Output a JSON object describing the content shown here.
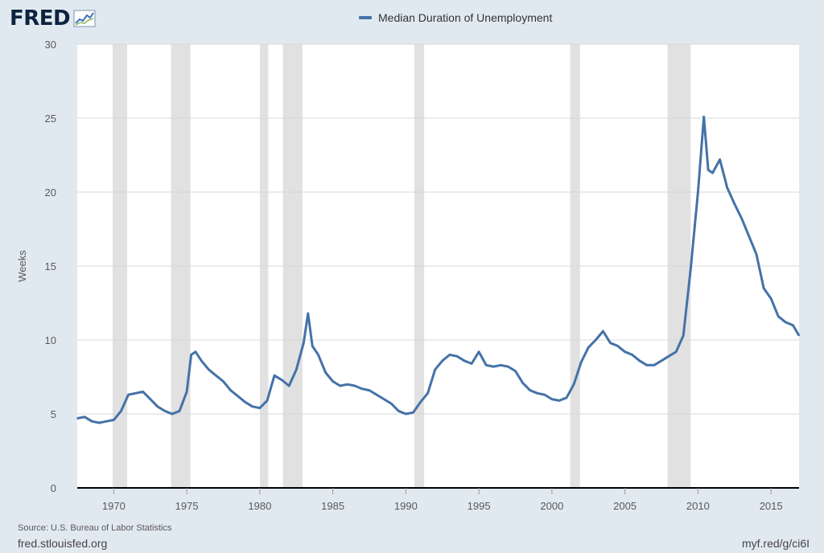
{
  "brand": {
    "logo_text": "FRED",
    "logo_icon": "line-chart-icon"
  },
  "legend": {
    "series_name": "Median Duration of Unemployment",
    "color": "#4572a7"
  },
  "footer": {
    "source": "Source: U.S. Bureau of Labor Statistics",
    "site": "fred.stlouisfed.org",
    "short_link": "myf.red/g/ci6I"
  },
  "colors": {
    "background": "#e1e9f0",
    "plot_bg": "#ffffff",
    "recession": "#e1e1e1",
    "grid": "#d8d8d8",
    "axis": "#000000"
  },
  "chart_data": {
    "type": "line",
    "title": "",
    "xlabel": "",
    "ylabel": "Weeks",
    "xlim": [
      1967.5,
      2016.92
    ],
    "ylim": [
      0,
      30
    ],
    "yticks": [
      0,
      5,
      10,
      15,
      20,
      25,
      30
    ],
    "xticks": [
      1970,
      1975,
      1980,
      1985,
      1990,
      1995,
      2000,
      2005,
      2010,
      2015
    ],
    "grid": true,
    "legend": "top-center",
    "recessions": [
      [
        1969.92,
        1970.92
      ],
      [
        1973.92,
        1975.25
      ],
      [
        1980.0,
        1980.58
      ],
      [
        1981.58,
        1982.92
      ],
      [
        1990.58,
        1991.25
      ],
      [
        2001.25,
        2001.92
      ],
      [
        2007.92,
        2009.5
      ]
    ],
    "series": [
      {
        "name": "Median Duration of Unemployment",
        "color": "#4572a7",
        "x": [
          1967.5,
          1968.0,
          1968.5,
          1969.0,
          1969.5,
          1970.0,
          1970.5,
          1971.0,
          1971.5,
          1972.0,
          1972.5,
          1973.0,
          1973.5,
          1974.0,
          1974.5,
          1975.0,
          1975.3,
          1975.6,
          1976.0,
          1976.5,
          1977.0,
          1977.5,
          1978.0,
          1978.5,
          1979.0,
          1979.5,
          1980.0,
          1980.5,
          1981.0,
          1981.5,
          1982.0,
          1982.5,
          1983.0,
          1983.3,
          1983.6,
          1984.0,
          1984.5,
          1985.0,
          1985.5,
          1986.0,
          1986.5,
          1987.0,
          1987.5,
          1988.0,
          1988.5,
          1989.0,
          1989.5,
          1990.0,
          1990.5,
          1991.0,
          1991.5,
          1992.0,
          1992.5,
          1993.0,
          1993.5,
          1994.0,
          1994.5,
          1995.0,
          1995.5,
          1996.0,
          1996.5,
          1997.0,
          1997.5,
          1998.0,
          1998.5,
          1999.0,
          1999.5,
          2000.0,
          2000.5,
          2001.0,
          2001.5,
          2002.0,
          2002.5,
          2003.0,
          2003.5,
          2004.0,
          2004.5,
          2005.0,
          2005.5,
          2006.0,
          2006.5,
          2007.0,
          2007.5,
          2008.0,
          2008.5,
          2009.0,
          2009.5,
          2010.0,
          2010.4,
          2010.7,
          2011.0,
          2011.5,
          2012.0,
          2012.5,
          2013.0,
          2013.5,
          2014.0,
          2014.5,
          2015.0,
          2015.5,
          2016.0,
          2016.5,
          2016.92
        ],
        "values": [
          4.7,
          4.8,
          4.5,
          4.4,
          4.5,
          4.6,
          5.2,
          6.3,
          6.4,
          6.5,
          6.0,
          5.5,
          5.2,
          5.0,
          5.2,
          6.5,
          9.0,
          9.2,
          8.6,
          8.0,
          7.6,
          7.2,
          6.6,
          6.2,
          5.8,
          5.5,
          5.4,
          5.9,
          7.6,
          7.3,
          6.9,
          8.0,
          9.8,
          11.8,
          9.6,
          9.0,
          7.8,
          7.2,
          6.9,
          7.0,
          6.9,
          6.7,
          6.6,
          6.3,
          6.0,
          5.7,
          5.2,
          5.0,
          5.1,
          5.8,
          6.4,
          8.0,
          8.6,
          9.0,
          8.9,
          8.6,
          8.4,
          9.2,
          8.3,
          8.2,
          8.3,
          8.2,
          7.9,
          7.1,
          6.6,
          6.4,
          6.3,
          6.0,
          5.9,
          6.1,
          7.0,
          8.5,
          9.5,
          10.0,
          10.6,
          9.8,
          9.6,
          9.2,
          9.0,
          8.6,
          8.3,
          8.3,
          8.6,
          8.9,
          9.2,
          10.3,
          14.8,
          20.0,
          25.1,
          21.5,
          21.3,
          22.2,
          20.3,
          19.2,
          18.2,
          17.0,
          15.8,
          13.5,
          12.8,
          11.6,
          11.2,
          11.0,
          10.3
        ]
      }
    ]
  }
}
